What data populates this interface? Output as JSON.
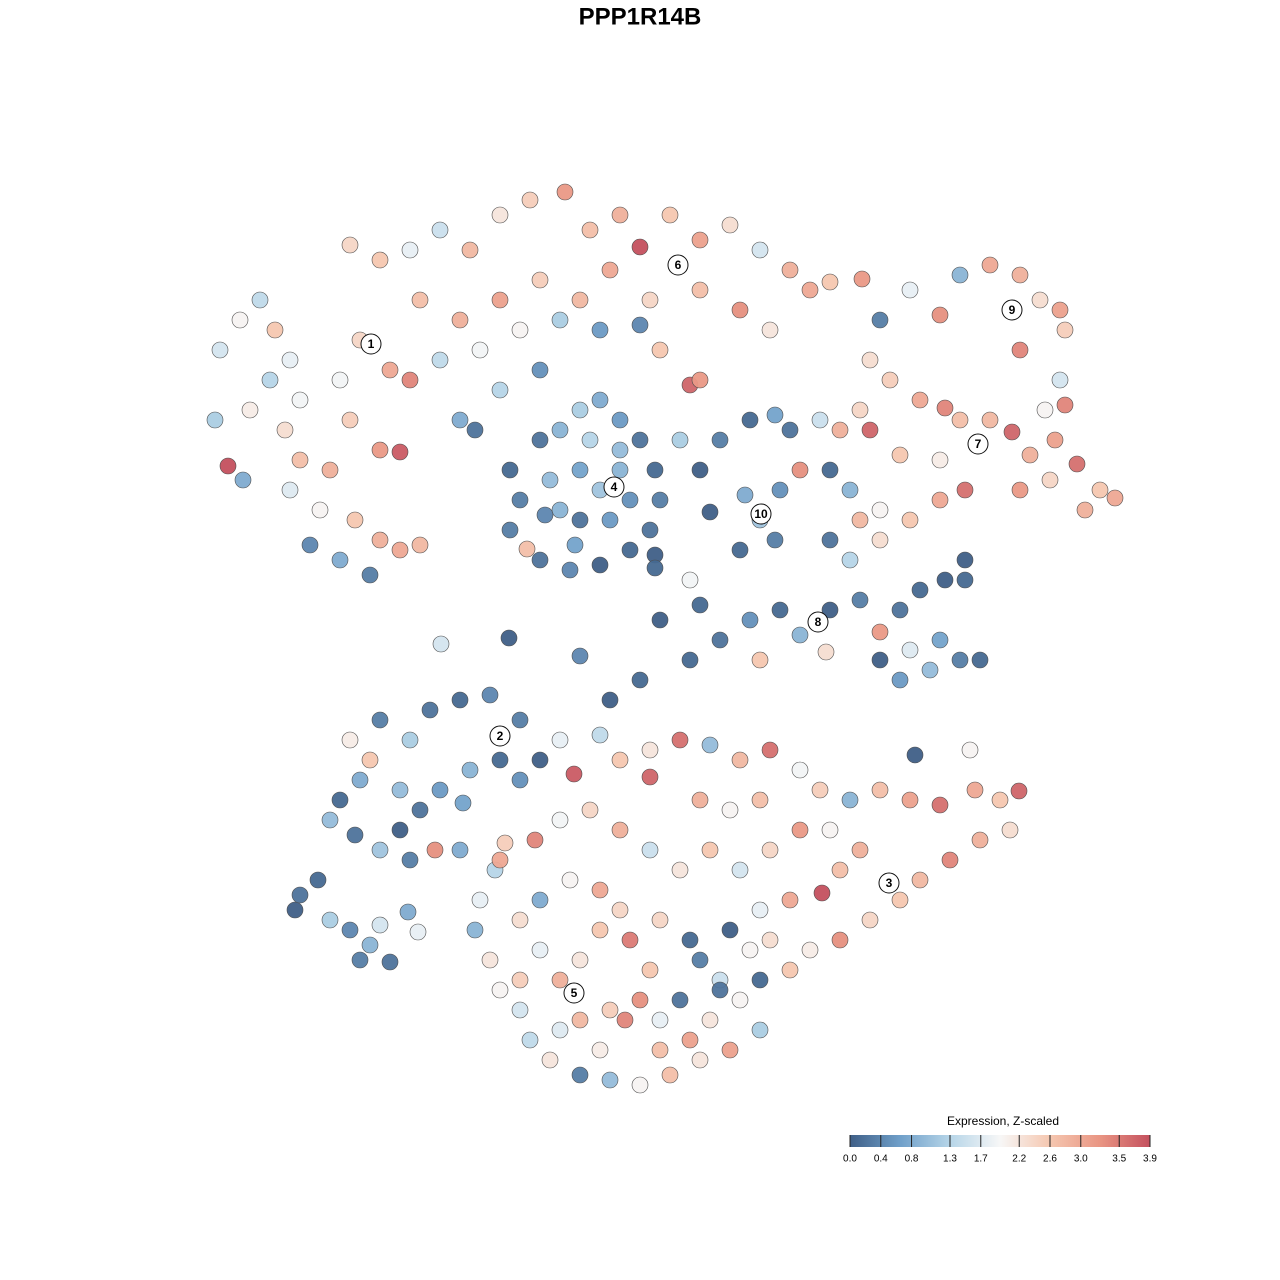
{
  "chart_data": {
    "type": "scatter",
    "title": "PPP1R14B",
    "xlim": [
      0,
      1280
    ],
    "ylim": [
      1280,
      0
    ],
    "x": [
      220,
      215,
      228,
      243,
      240,
      260,
      275,
      290,
      300,
      285,
      300,
      290,
      320,
      310,
      340,
      370,
      355,
      380,
      400,
      420,
      380,
      400,
      350,
      340,
      360,
      390,
      410,
      330,
      270,
      250,
      350,
      380,
      410,
      440,
      470,
      500,
      530,
      565,
      590,
      620,
      640,
      670,
      700,
      730,
      760,
      790,
      810,
      830,
      420,
      460,
      500,
      540,
      580,
      610,
      650,
      700,
      740,
      770,
      480,
      440,
      520,
      560,
      600,
      640,
      690,
      700,
      660,
      540,
      500,
      460,
      475,
      862,
      880,
      910,
      940,
      960,
      990,
      1020,
      1040,
      1060,
      1020,
      1065,
      1060,
      1065,
      1045,
      870,
      890,
      920,
      945,
      960,
      990,
      1012,
      1030,
      1055,
      1077,
      1100,
      1115,
      1085,
      1050,
      1020,
      965,
      940,
      900,
      870,
      840,
      860,
      850,
      860,
      880,
      910,
      940,
      880,
      850,
      830,
      510,
      520,
      540,
      560,
      580,
      600,
      620,
      640,
      655,
      660,
      650,
      630,
      600,
      570,
      540,
      527,
      510,
      550,
      580,
      600,
      620,
      610,
      580,
      560,
      630,
      590,
      545,
      620,
      575,
      655,
      680,
      700,
      720,
      750,
      775,
      790,
      800,
      780,
      760,
      745,
      775,
      740,
      710,
      830,
      820,
      660,
      700,
      720,
      750,
      780,
      800,
      830,
      860,
      880,
      900,
      920,
      945,
      965,
      940,
      960,
      980,
      930,
      900,
      880,
      910,
      826,
      760,
      690,
      640,
      610,
      580,
      509,
      441,
      690,
      655,
      340,
      330,
      360,
      350,
      380,
      410,
      430,
      460,
      490,
      520,
      540,
      520,
      500,
      470,
      440,
      420,
      400,
      380,
      410,
      435,
      460,
      370,
      400,
      355,
      463,
      295,
      300,
      318,
      330,
      350,
      360,
      380,
      370,
      408,
      418,
      390,
      560,
      574,
      600,
      620,
      650,
      680,
      710,
      740,
      770,
      800,
      820,
      850,
      880,
      910,
      940,
      975,
      1000,
      1019,
      1010,
      980,
      950,
      920,
      900,
      870,
      840,
      810,
      790,
      770,
      760,
      790,
      822,
      840,
      860,
      830,
      800,
      770,
      740,
      710,
      680,
      650,
      620,
      590,
      560,
      535,
      650,
      700,
      730,
      760,
      965,
      970,
      915,
      495,
      480,
      475,
      490,
      500,
      520,
      530,
      550,
      580,
      610,
      640,
      670,
      700,
      730,
      760,
      740,
      720,
      700,
      690,
      660,
      630,
      600,
      580,
      560,
      540,
      520,
      540,
      570,
      600,
      620,
      650,
      640,
      610,
      580,
      600,
      625,
      660,
      680,
      710,
      690,
      660,
      560,
      520,
      750,
      730,
      760,
      720,
      500,
      505
    ],
    "y": [
      350,
      420,
      466,
      480,
      320,
      300,
      330,
      360,
      400,
      430,
      460,
      490,
      510,
      545,
      560,
      575,
      520,
      540,
      550,
      545,
      450,
      452,
      420,
      380,
      340,
      370,
      380,
      470,
      380,
      410,
      245,
      260,
      250,
      230,
      250,
      215,
      200,
      192,
      230,
      215,
      247,
      215,
      240,
      225,
      250,
      270,
      290,
      282,
      300,
      320,
      300,
      280,
      300,
      270,
      300,
      290,
      310,
      330,
      350,
      360,
      330,
      320,
      330,
      325,
      385,
      380,
      350,
      370,
      390,
      420,
      430,
      279,
      320,
      290,
      315,
      275,
      265,
      275,
      300,
      310,
      350,
      330,
      380,
      405,
      410,
      360,
      380,
      400,
      408,
      420,
      420,
      432,
      455,
      440,
      464,
      490,
      498,
      510,
      480,
      490,
      490,
      460,
      455,
      430,
      430,
      410,
      490,
      520,
      510,
      520,
      500,
      540,
      560,
      540,
      470,
      500,
      440,
      430,
      410,
      400,
      420,
      440,
      470,
      500,
      530,
      550,
      565,
      570,
      560,
      549,
      530,
      480,
      470,
      490,
      470,
      520,
      520,
      510,
      500,
      440,
      515,
      450,
      545,
      555,
      440,
      470,
      440,
      420,
      415,
      430,
      470,
      490,
      520,
      495,
      540,
      550,
      512,
      470,
      420,
      620,
      605,
      640,
      620,
      610,
      635,
      610,
      600,
      632,
      610,
      590,
      580,
      580,
      640,
      660,
      660,
      670,
      680,
      660,
      650,
      652,
      660,
      660,
      680,
      700,
      656,
      638,
      644,
      580,
      568,
      800,
      820,
      780,
      740,
      720,
      740,
      710,
      700,
      695,
      720,
      760,
      780,
      760,
      770,
      790,
      810,
      830,
      850,
      860,
      850,
      850,
      760,
      790,
      835,
      803,
      910,
      895,
      880,
      920,
      930,
      960,
      925,
      945,
      912,
      932,
      962,
      740,
      774,
      735,
      760,
      750,
      740,
      745,
      760,
      750,
      770,
      790,
      800,
      790,
      800,
      805,
      790,
      800,
      791,
      830,
      840,
      860,
      880,
      900,
      920,
      940,
      950,
      970,
      940,
      910,
      900,
      893,
      870,
      850,
      830,
      830,
      850,
      870,
      850,
      870,
      850,
      830,
      810,
      820,
      840,
      777,
      800,
      810,
      800,
      560,
      750,
      755,
      870,
      900,
      930,
      960,
      990,
      1010,
      1040,
      1060,
      1075,
      1080,
      1085,
      1075,
      1060,
      1050,
      1030,
      1000,
      980,
      960,
      940,
      920,
      940,
      930,
      960,
      980,
      950,
      920,
      900,
      880,
      890,
      910,
      970,
      1000,
      1010,
      1020,
      1050,
      1020,
      1020,
      1000,
      1020,
      1040,
      1050,
      1030,
      980,
      950,
      930,
      980,
      990,
      860,
      843
    ],
    "values": [
      1.6,
      1.2,
      3.9,
      0.8,
      2.0,
      1.4,
      2.6,
      1.8,
      1.9,
      2.3,
      2.7,
      1.7,
      2.0,
      0.4,
      0.8,
      0.3,
      2.6,
      2.9,
      3.0,
      2.8,
      3.2,
      3.8,
      2.5,
      1.9,
      2.4,
      3.0,
      3.4,
      2.9,
      1.3,
      2.1,
      2.4,
      2.6,
      1.8,
      1.5,
      2.8,
      2.2,
      2.5,
      3.2,
      2.7,
      2.9,
      3.9,
      2.6,
      3.1,
      2.3,
      1.6,
      2.9,
      3.0,
      2.6,
      2.7,
      2.9,
      3.1,
      2.5,
      2.8,
      3.0,
      2.4,
      2.7,
      3.3,
      2.2,
      1.9,
      1.4,
      2.0,
      1.2,
      0.6,
      0.4,
      3.7,
      3.2,
      2.6,
      0.5,
      1.3,
      0.8,
      0.2,
      3.2,
      0.3,
      1.8,
      3.3,
      0.9,
      3.0,
      2.9,
      2.3,
      3.1,
      3.4,
      2.5,
      1.6,
      3.4,
      2.0,
      2.3,
      2.5,
      3.0,
      3.4,
      2.7,
      2.8,
      3.7,
      2.9,
      3.1,
      3.6,
      2.6,
      3.0,
      2.9,
      2.4,
      3.2,
      3.6,
      2.1,
      2.6,
      3.7,
      2.9,
      2.4,
      0.9,
      2.8,
      2.0,
      2.6,
      3.0,
      2.3,
      1.3,
      0.2,
      0.1,
      0.3,
      0.2,
      0.9,
      1.2,
      0.8,
      0.6,
      0.2,
      0.1,
      0.3,
      0.2,
      0.1,
      0.0,
      0.4,
      0.2,
      2.7,
      0.3,
      1.0,
      0.7,
      1.1,
      0.9,
      0.6,
      0.2,
      0.9,
      0.5,
      1.3,
      0.4,
      1.0,
      0.7,
      0.0,
      1.2,
      0.0,
      0.3,
      0.1,
      0.7,
      0.2,
      3.3,
      0.5,
      1.1,
      0.8,
      0.3,
      0.1,
      0.0,
      0.1,
      1.5,
      0.0,
      0.1,
      0.2,
      0.5,
      0.1,
      0.9,
      0.0,
      0.3,
      3.2,
      0.2,
      0.1,
      0.0,
      0.1,
      0.7,
      0.3,
      0.1,
      1.0,
      0.6,
      0.0,
      1.7,
      2.3,
      2.6,
      0.1,
      0.1,
      0.0,
      0.4,
      0.0,
      1.6,
      1.9,
      0.1,
      0.1,
      1.0,
      0.8,
      2.1,
      0.3,
      1.2,
      0.2,
      0.1,
      0.4,
      0.3,
      0.0,
      0.5,
      0.1,
      0.9,
      0.6,
      0.2,
      0.0,
      1.1,
      0.3,
      3.3,
      0.8,
      2.6,
      1.0,
      0.2,
      0.7,
      0.0,
      0.2,
      0.1,
      1.2,
      0.4,
      0.3,
      1.6,
      0.9,
      0.8,
      1.8,
      0.2,
      1.8,
      3.8,
      1.4,
      2.6,
      2.2,
      3.6,
      1.0,
      2.8,
      3.6,
      1.9,
      2.5,
      0.9,
      2.7,
      3.1,
      3.6,
      3.0,
      2.6,
      3.7,
      2.3,
      2.9,
      3.4,
      2.8,
      2.6,
      2.4,
      3.3,
      2.1,
      2.6,
      2.3,
      1.8,
      3.0,
      3.9,
      2.7,
      2.9,
      2.0,
      3.2,
      2.4,
      1.6,
      2.6,
      2.2,
      1.5,
      2.9,
      2.4,
      1.9,
      3.4,
      3.7,
      2.9,
      2.0,
      2.7,
      0.0,
      2.0,
      0.0,
      1.3,
      1.8,
      0.9,
      2.2,
      2.0,
      1.6,
      1.4,
      2.2,
      0.3,
      1.0,
      2.0,
      2.7,
      2.2,
      3.1,
      1.2,
      2.0,
      1.5,
      0.3,
      0.1,
      2.4,
      3.5,
      2.6,
      2.2,
      2.9,
      1.8,
      2.3,
      0.8,
      2.0,
      3.0,
      2.4,
      2.6,
      3.3,
      2.5,
      2.8,
      2.1,
      3.4,
      1.8,
      0.2,
      2.2,
      3.1,
      2.7,
      1.7,
      2.5,
      2.0,
      0.0,
      0.1,
      0.2,
      3.0,
      2.5
    ],
    "cluster_labels": [
      {
        "label": "1",
        "x": 371,
        "y": 344
      },
      {
        "label": "2",
        "x": 500,
        "y": 736
      },
      {
        "label": "3",
        "x": 889,
        "y": 883
      },
      {
        "label": "4",
        "x": 614,
        "y": 487
      },
      {
        "label": "5",
        "x": 574,
        "y": 993
      },
      {
        "label": "6",
        "x": 678,
        "y": 265
      },
      {
        "label": "7",
        "x": 978,
        "y": 444
      },
      {
        "label": "8",
        "x": 818,
        "y": 622
      },
      {
        "label": "9",
        "x": 1012,
        "y": 310
      },
      {
        "label": "10",
        "x": 761,
        "y": 514
      }
    ],
    "colorbar": {
      "title": "Expression, Z-scaled",
      "clim": [
        0,
        3.9
      ],
      "colors": [
        "#3f5f87",
        "#6f9fc9",
        "#b6d5e8",
        "#f7f7f7",
        "#f5c7b0",
        "#e99583",
        "#c4505e"
      ],
      "ticks": [
        {
          "value": 0,
          "label": "0.0"
        },
        0.4,
        0.8,
        1.3,
        1.7,
        2.2,
        2.6,
        {
          "value": 3,
          "label": "3.0"
        },
        3.5,
        3.9
      ]
    }
  }
}
